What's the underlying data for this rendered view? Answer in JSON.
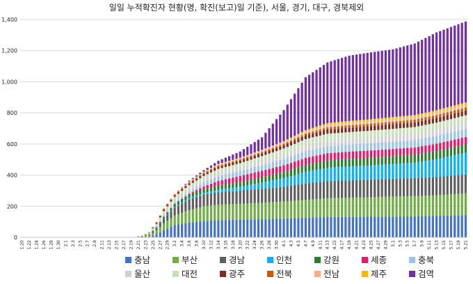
{
  "chart_data": {
    "type": "bar",
    "stacked": true,
    "title": "일일 누적확진자 현황(명, 확진(보고)일 기준), 서울, 경기, 대구, 경북제외",
    "xlabel": "",
    "ylabel": "",
    "ylim": [
      0,
      1400
    ],
    "yticks": [
      0,
      200,
      400,
      600,
      800,
      1000,
      1200,
      1400
    ],
    "ytick_labels": [
      "0",
      "200",
      "400",
      "600",
      "800",
      "1,000",
      "1,200",
      "1,400"
    ],
    "x_start": "1.20",
    "x_end": "5.21",
    "xtick_labels": [
      "1.20",
      "1.22",
      "1.24",
      "1.26",
      "1.28",
      "1.30",
      "2.1",
      "2.3",
      "2.5",
      "2.7",
      "2.9",
      "2.11",
      "2.13",
      "2.15",
      "2.17",
      "2.19",
      "2.21",
      "2.23",
      "2.25",
      "2.27",
      "2.29",
      "3.2",
      "3.4",
      "3.6",
      "3.8",
      "3.10",
      "3.12",
      "3.14",
      "3.16",
      "3.18",
      "3.20",
      "3.22",
      "3.24",
      "3.26",
      "3.28",
      "3.30",
      "4.1",
      "4.3",
      "4.5",
      "4.7",
      "4.9",
      "4.11",
      "4.13",
      "4.15",
      "4.17",
      "4.19",
      "4.21",
      "4.23",
      "4.25",
      "4.27",
      "4.29",
      "5.1",
      "5.3",
      "5.5",
      "5.7",
      "5.9",
      "5.11",
      "5.13",
      "5.15",
      "5.17",
      "5.19",
      "5.21"
    ],
    "grid": true,
    "legend_position": "bottom",
    "note": "Each series value is its own stacked segment height (cases) at the listed anchor dates; values between anchor dates are read off the bars as a linear interpolation.",
    "anchor_dates": [
      "1.20",
      "2.18",
      "2.20",
      "2.22",
      "2.24",
      "2.26",
      "2.28",
      "3.2",
      "3.6",
      "3.10",
      "3.14",
      "3.20",
      "3.26",
      "4.1",
      "4.7",
      "4.13",
      "4.19",
      "4.25",
      "5.1",
      "5.7",
      "5.13",
      "5.21"
    ],
    "series": [
      {
        "name": "충남",
        "color": "#4472c4",
        "values": [
          0,
          0,
          1,
          2,
          5,
          20,
          45,
          80,
          95,
          105,
          110,
          113,
          117,
          120,
          126,
          130,
          131,
          132,
          133,
          135,
          138,
          143
        ]
      },
      {
        "name": "부산",
        "color": "#70ad47",
        "values": [
          0,
          0,
          0,
          3,
          8,
          25,
          45,
          60,
          80,
          95,
          100,
          102,
          105,
          110,
          115,
          122,
          124,
          126,
          129,
          130,
          132,
          140
        ]
      },
      {
        "name": "경남",
        "color": "#5f5f5f",
        "values": [
          0,
          0,
          0,
          2,
          6,
          15,
          30,
          50,
          70,
          75,
          80,
          85,
          90,
          95,
          105,
          110,
          111,
          113,
          114,
          115,
          117,
          121
        ]
      },
      {
        "name": "인천",
        "color": "#0eb0f0",
        "values": [
          0,
          0,
          0,
          0,
          0,
          1,
          2,
          5,
          8,
          10,
          15,
          25,
          40,
          55,
          75,
          85,
          90,
          92,
          95,
          100,
          115,
          140
        ]
      },
      {
        "name": "강원",
        "color": "#2e7d32",
        "values": [
          0,
          0,
          0,
          1,
          2,
          5,
          10,
          20,
          25,
          27,
          28,
          30,
          35,
          40,
          45,
          48,
          49,
          50,
          51,
          52,
          53,
          54
        ]
      },
      {
        "name": "세종",
        "color": "#e6196b",
        "values": [
          0,
          0,
          0,
          0,
          0,
          0,
          1,
          1,
          3,
          15,
          30,
          40,
          42,
          43,
          45,
          46,
          46,
          46,
          46,
          46,
          47,
          47
        ]
      },
      {
        "name": "충북",
        "color": "#9dc3e6",
        "values": [
          0,
          0,
          0,
          0,
          1,
          5,
          8,
          10,
          15,
          25,
          30,
          32,
          35,
          40,
          43,
          45,
          45,
          46,
          47,
          48,
          50,
          52
        ]
      },
      {
        "name": "울산",
        "color": "#d0d0d0",
        "values": [
          0,
          0,
          0,
          1,
          3,
          8,
          15,
          20,
          23,
          24,
          25,
          26,
          28,
          32,
          38,
          40,
          40,
          40,
          40,
          40,
          41,
          42
        ]
      },
      {
        "name": "대전",
        "color": "#c5e0b4",
        "values": [
          0,
          0,
          0,
          1,
          3,
          8,
          13,
          15,
          17,
          19,
          22,
          24,
          30,
          36,
          39,
          40,
          40,
          41,
          42,
          43,
          44,
          45
        ]
      },
      {
        "name": "광주",
        "color": "#7b2d26",
        "values": [
          0,
          0,
          0,
          0,
          2,
          5,
          8,
          9,
          10,
          12,
          15,
          16,
          18,
          20,
          24,
          27,
          28,
          29,
          30,
          30,
          30,
          30
        ]
      },
      {
        "name": "전북",
        "color": "#c55a11",
        "values": [
          0,
          0,
          0,
          1,
          3,
          5,
          6,
          6,
          7,
          7,
          7,
          8,
          9,
          10,
          12,
          14,
          16,
          16,
          17,
          18,
          19,
          20
        ]
      },
      {
        "name": "전남",
        "color": "#f4b183",
        "values": [
          0,
          0,
          0,
          0,
          0,
          1,
          2,
          3,
          4,
          5,
          6,
          7,
          9,
          10,
          13,
          15,
          15,
          15,
          16,
          16,
          17,
          18
        ]
      },
      {
        "name": "제주",
        "color": "#f5b800",
        "values": [
          0,
          0,
          0,
          0,
          1,
          1,
          2,
          2,
          3,
          3,
          4,
          4,
          5,
          7,
          9,
          12,
          13,
          13,
          13,
          13,
          14,
          15
        ]
      },
      {
        "name": "검역",
        "color": "#7030a0",
        "values": [
          0,
          0,
          0,
          0,
          0,
          0,
          0,
          0,
          5,
          10,
          20,
          40,
          80,
          200,
          340,
          390,
          420,
          430,
          435,
          460,
          500,
          520
        ]
      }
    ]
  }
}
